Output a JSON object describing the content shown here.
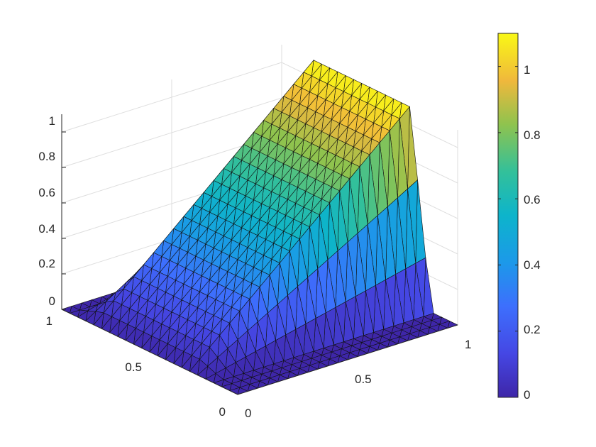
{
  "chart_data": {
    "type": "surface",
    "title": "",
    "xlabel": "",
    "ylabel": "",
    "zlabel": "",
    "x_ticks": [
      "0",
      "0.5",
      "1"
    ],
    "y_ticks": [
      "0",
      "0.5",
      "1"
    ],
    "z_ticks": [
      "0",
      "0.2",
      "0.4",
      "0.6",
      "0.8",
      "1"
    ],
    "xlim": [
      0,
      1
    ],
    "ylim": [
      0,
      1
    ],
    "zlim": [
      0,
      1.1
    ],
    "grid": true,
    "shading": "faceted",
    "colormap": "parula",
    "colorbar": {
      "ticks": [
        "0",
        "0.2",
        "0.4",
        "0.6",
        "0.8",
        "1"
      ],
      "range": [
        0,
        1.1
      ]
    },
    "surface": {
      "description_of_shape": "ramp rising along x from the y-axis edge, flat near zero elsewhere",
      "max_value": 1.1,
      "min_value": 0
    }
  }
}
